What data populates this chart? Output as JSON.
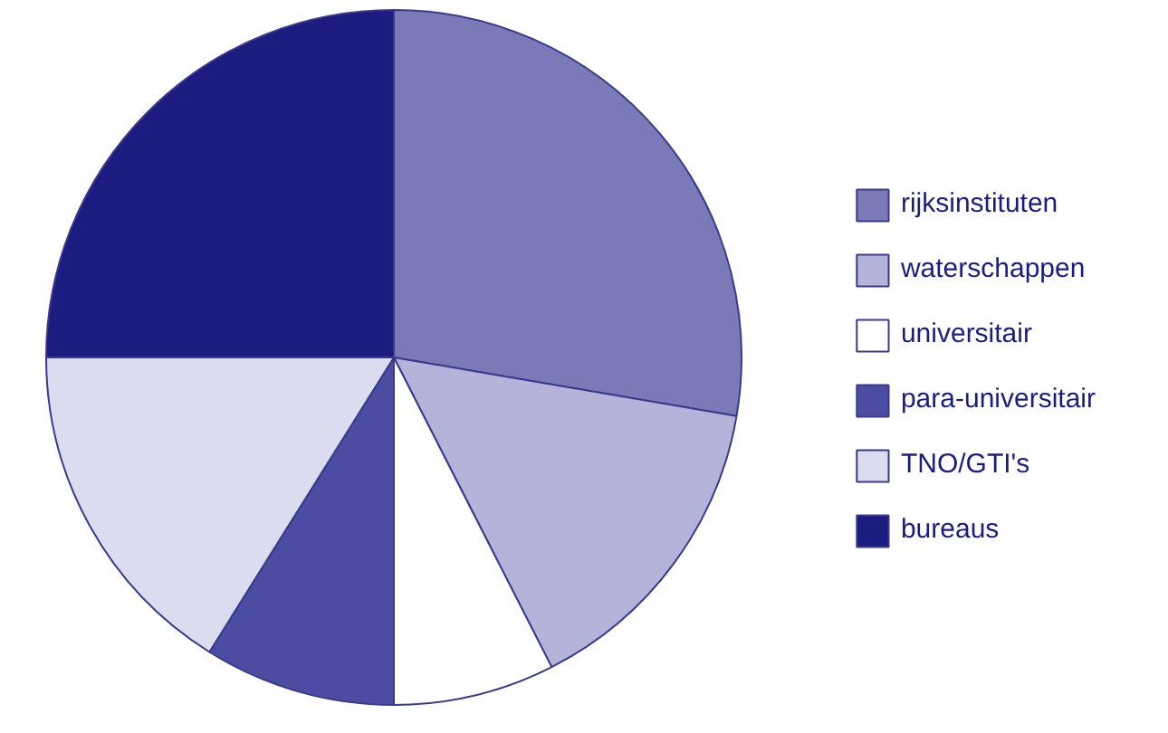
{
  "chart_data": {
    "type": "pie",
    "categories": [
      "rijksinstituten",
      "waterschappen",
      "universitair",
      "para-universitair",
      "TNO/GTI's",
      "bureaus"
    ],
    "values": [
      27.7,
      14.8,
      7.5,
      8.9,
      16.1,
      25.0
    ],
    "colors": [
      "#7a7ab8",
      "#b4b4da",
      "#ffffff",
      "#4c4ca2",
      "#dcdcf0",
      "#1c1c80"
    ],
    "legend": "right"
  }
}
